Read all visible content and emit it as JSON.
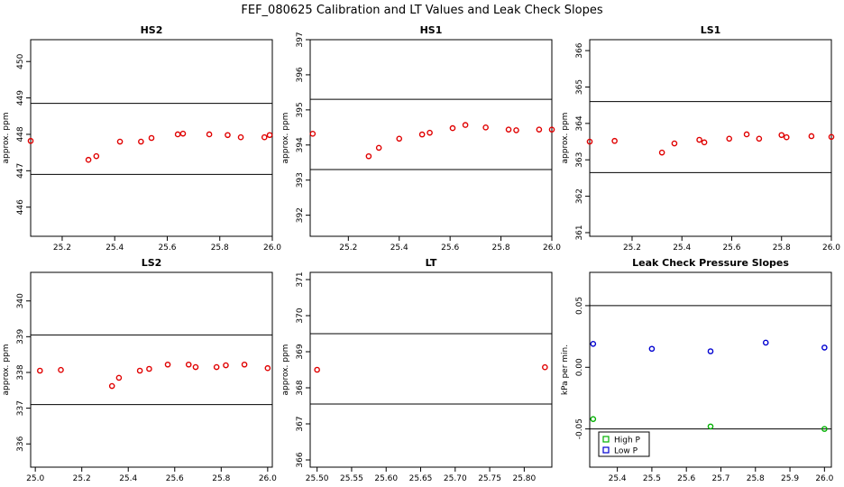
{
  "figure_title": "FEF_080625  Calibration and LT Values and Leak Check Slopes",
  "chart_data": [
    {
      "type": "scatter",
      "title": "HS2",
      "ylabel": "approx. ppm",
      "xlim": [
        25.08,
        26.0
      ],
      "ylim": [
        445.2,
        450.6
      ],
      "xticks": [
        25.2,
        25.4,
        25.6,
        25.8,
        26.0
      ],
      "xtick_labels": [
        "25.2",
        "25.4",
        "25.6",
        "25.8",
        "26.0"
      ],
      "yticks": [
        446,
        447,
        448,
        449,
        450
      ],
      "ytick_labels": [
        "446",
        "447",
        "448",
        "449",
        "450"
      ],
      "hlines": [
        448.85,
        446.9
      ],
      "series": [
        {
          "color": "#e00000",
          "marker": "circle",
          "points": [
            [
              25.08,
              447.82
            ],
            [
              25.3,
              447.3
            ],
            [
              25.33,
              447.4
            ],
            [
              25.42,
              447.8
            ],
            [
              25.5,
              447.8
            ],
            [
              25.54,
              447.9
            ],
            [
              25.64,
              448.0
            ],
            [
              25.66,
              448.02
            ],
            [
              25.76,
              448.0
            ],
            [
              25.83,
              447.98
            ],
            [
              25.88,
              447.92
            ],
            [
              25.97,
              447.92
            ],
            [
              25.99,
              447.98
            ]
          ]
        }
      ]
    },
    {
      "type": "scatter",
      "title": "HS1",
      "ylabel": "approx. ppm",
      "xlim": [
        25.05,
        26.0
      ],
      "ylim": [
        391.4,
        397.0
      ],
      "xticks": [
        25.2,
        25.4,
        25.6,
        25.8,
        26.0
      ],
      "xtick_labels": [
        "25.2",
        "25.4",
        "25.6",
        "25.8",
        "26.0"
      ],
      "yticks": [
        392,
        393,
        394,
        395,
        396,
        397
      ],
      "ytick_labels": [
        "392",
        "393",
        "394",
        "395",
        "396",
        "397"
      ],
      "hlines": [
        395.3,
        393.3
      ],
      "series": [
        {
          "color": "#e00000",
          "marker": "circle",
          "points": [
            [
              25.06,
              394.32
            ],
            [
              25.28,
              393.68
            ],
            [
              25.32,
              393.92
            ],
            [
              25.4,
              394.18
            ],
            [
              25.49,
              394.3
            ],
            [
              25.52,
              394.35
            ],
            [
              25.61,
              394.48
            ],
            [
              25.66,
              394.57
            ],
            [
              25.74,
              394.5
            ],
            [
              25.83,
              394.44
            ],
            [
              25.86,
              394.42
            ],
            [
              25.95,
              394.44
            ],
            [
              26.0,
              394.44
            ]
          ]
        }
      ]
    },
    {
      "type": "scatter",
      "title": "LS1",
      "ylabel": "approx. ppm",
      "xlim": [
        25.03,
        26.0
      ],
      "ylim": [
        360.9,
        366.3
      ],
      "xticks": [
        25.2,
        25.4,
        25.6,
        25.8,
        26.0
      ],
      "xtick_labels": [
        "25.2",
        "25.4",
        "25.6",
        "25.8",
        "26.0"
      ],
      "yticks": [
        361,
        362,
        363,
        364,
        365,
        366
      ],
      "ytick_labels": [
        "361",
        "362",
        "363",
        "364",
        "365",
        "366"
      ],
      "hlines": [
        364.6,
        362.65
      ],
      "series": [
        {
          "color": "#e00000",
          "marker": "circle",
          "points": [
            [
              25.03,
              363.5
            ],
            [
              25.13,
              363.52
            ],
            [
              25.32,
              363.2
            ],
            [
              25.37,
              363.45
            ],
            [
              25.47,
              363.55
            ],
            [
              25.49,
              363.48
            ],
            [
              25.59,
              363.58
            ],
            [
              25.66,
              363.7
            ],
            [
              25.71,
              363.58
            ],
            [
              25.8,
              363.68
            ],
            [
              25.82,
              363.62
            ],
            [
              25.92,
              363.65
            ],
            [
              26.0,
              363.63
            ]
          ]
        }
      ]
    },
    {
      "type": "scatter",
      "title": "LS2",
      "ylabel": "approx. ppm",
      "xlim": [
        24.98,
        26.02
      ],
      "ylim": [
        335.35,
        340.8
      ],
      "xticks": [
        25.0,
        25.2,
        25.4,
        25.6,
        25.8,
        26.0
      ],
      "xtick_labels": [
        "25.0",
        "25.2",
        "25.4",
        "25.6",
        "25.8",
        "26.0"
      ],
      "yticks": [
        336,
        337,
        338,
        339,
        340
      ],
      "ytick_labels": [
        "336",
        "337",
        "338",
        "339",
        "340"
      ],
      "hlines": [
        339.05,
        337.1
      ],
      "series": [
        {
          "color": "#e00000",
          "marker": "circle",
          "points": [
            [
              25.02,
              338.05
            ],
            [
              25.11,
              338.07
            ],
            [
              25.33,
              337.62
            ],
            [
              25.36,
              337.85
            ],
            [
              25.45,
              338.05
            ],
            [
              25.49,
              338.1
            ],
            [
              25.57,
              338.22
            ],
            [
              25.66,
              338.22
            ],
            [
              25.69,
              338.15
            ],
            [
              25.78,
              338.15
            ],
            [
              25.82,
              338.2
            ],
            [
              25.9,
              338.22
            ],
            [
              26.0,
              338.12
            ]
          ]
        }
      ]
    },
    {
      "type": "scatter",
      "title": "LT",
      "ylabel": "approx. ppm",
      "xlim": [
        25.49,
        25.84
      ],
      "ylim": [
        365.8,
        371.2
      ],
      "xticks": [
        25.5,
        25.55,
        25.6,
        25.65,
        25.7,
        25.75,
        25.8
      ],
      "xtick_labels": [
        "25.50",
        "25.55",
        "25.60",
        "25.65",
        "25.70",
        "25.75",
        "25.80"
      ],
      "yticks": [
        366,
        367,
        368,
        369,
        370,
        371
      ],
      "ytick_labels": [
        "366",
        "367",
        "368",
        "369",
        "370",
        "371"
      ],
      "hlines": [
        369.5,
        367.55
      ],
      "series": [
        {
          "color": "#e00000",
          "marker": "circle",
          "points": [
            [
              25.5,
              368.5
            ],
            [
              25.83,
              368.57
            ]
          ]
        }
      ]
    },
    {
      "type": "scatter",
      "title": "Leak Check Pressure Slopes",
      "ylabel": "kPa per min.",
      "xlim": [
        25.32,
        26.02
      ],
      "ylim": [
        -0.081,
        0.077
      ],
      "xticks": [
        25.4,
        25.5,
        25.6,
        25.7,
        25.8,
        25.9,
        26.0
      ],
      "xtick_labels": [
        "25.4",
        "25.5",
        "25.6",
        "25.7",
        "25.8",
        "25.9",
        "26.0"
      ],
      "yticks": [
        -0.05,
        0.0,
        0.05
      ],
      "ytick_labels": [
        "-0.05",
        "0.00",
        "0.05"
      ],
      "hlines": [
        0.05,
        -0.05
      ],
      "legend_position": "bottom-left",
      "series": [
        {
          "name": "High P",
          "color": "#00b000",
          "marker": "circle",
          "points": [
            [
              25.33,
              -0.042
            ],
            [
              25.67,
              -0.048
            ],
            [
              26.0,
              -0.05
            ]
          ]
        },
        {
          "name": "Low P",
          "color": "#0000d0",
          "marker": "circle",
          "points": [
            [
              25.33,
              0.019
            ],
            [
              25.5,
              0.015
            ],
            [
              25.67,
              0.013
            ],
            [
              25.83,
              0.02
            ],
            [
              26.0,
              0.016
            ]
          ]
        }
      ]
    }
  ]
}
